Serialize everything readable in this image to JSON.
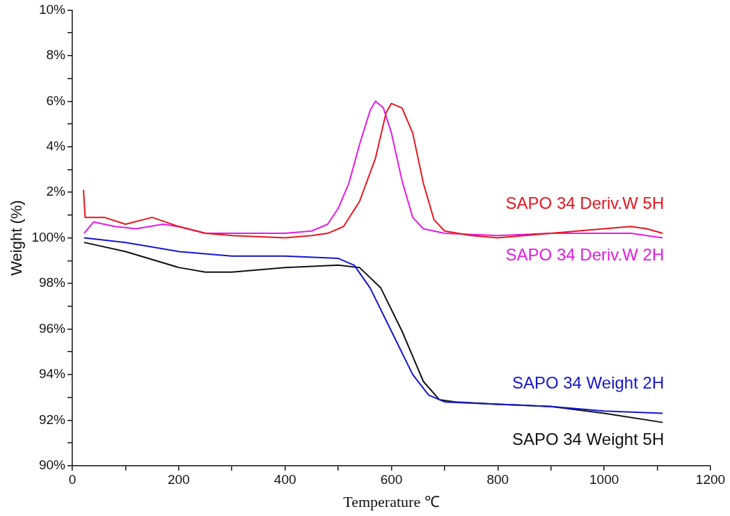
{
  "chart_data": {
    "type": "line",
    "xlabel": "Temperature ℃",
    "ylabel": "Weight (%)",
    "xlim": [
      0,
      1200
    ],
    "ylim": [
      90,
      110
    ],
    "y2lim": [
      -10,
      10
    ],
    "xticks": [
      0,
      {
        "value": 100,
        "label": null
      },
      200,
      {
        "value": 300,
        "label": null
      },
      400,
      {
        "value": 500,
        "label": null
      },
      600,
      {
        "value": 700,
        "label": null
      },
      800,
      {
        "value": 900,
        "label": null
      },
      1000,
      {
        "value": 1100,
        "label": null
      },
      1200
    ],
    "yticks": [
      {
        "value": 90,
        "label": "90%"
      },
      {
        "value": 91,
        "label": null
      },
      {
        "value": 92,
        "label": "92%"
      },
      {
        "value": 93,
        "label": null
      },
      {
        "value": 94,
        "label": "94%"
      },
      {
        "value": 95,
        "label": null
      },
      {
        "value": 96,
        "label": "96%"
      },
      {
        "value": 97,
        "label": null
      },
      {
        "value": 98,
        "label": "98%"
      },
      {
        "value": 99,
        "label": null
      },
      {
        "value": 100,
        "label": "100%"
      }
    ],
    "y2ticks": [
      {
        "value": 1,
        "label": null
      },
      {
        "value": 2,
        "label": "2%"
      },
      {
        "value": 3,
        "label": null
      },
      {
        "value": 4,
        "label": "4%"
      },
      {
        "value": 5,
        "label": null
      },
      {
        "value": 6,
        "label": "6%"
      },
      {
        "value": 7,
        "label": null
      },
      {
        "value": 8,
        "label": "8%"
      },
      {
        "value": 9,
        "label": null
      },
      {
        "value": 10,
        "label": "10%"
      }
    ],
    "grid": false,
    "legend": false,
    "marker": "none",
    "line_style": "solid",
    "series": [
      {
        "name": "SAPO 34 Deriv.W 5H",
        "color": "#e8141e",
        "axis": "y2",
        "x": [
          21,
          24,
          60,
          100,
          150,
          200,
          250,
          300,
          400,
          450,
          480,
          510,
          540,
          570,
          590,
          600,
          620,
          640,
          660,
          680,
          700,
          750,
          800,
          850,
          900,
          950,
          1000,
          1050,
          1080,
          1110
        ],
        "values": [
          2.1,
          0.9,
          0.9,
          0.6,
          0.9,
          0.5,
          0.2,
          0.1,
          0.0,
          0.1,
          0.2,
          0.5,
          1.6,
          3.5,
          5.5,
          5.9,
          5.7,
          4.6,
          2.4,
          0.8,
          0.3,
          0.1,
          0.0,
          0.1,
          0.2,
          0.3,
          0.4,
          0.5,
          0.4,
          0.2
        ]
      },
      {
        "name": "SAPO 34 Deriv.W 2H",
        "color": "#e619e6",
        "axis": "y2",
        "x": [
          22,
          40,
          80,
          120,
          170,
          200,
          250,
          300,
          400,
          450,
          480,
          500,
          520,
          540,
          560,
          570,
          585,
          600,
          620,
          640,
          660,
          700,
          800,
          900,
          1000,
          1050,
          1110
        ],
        "values": [
          0.2,
          0.7,
          0.5,
          0.4,
          0.6,
          0.5,
          0.2,
          0.2,
          0.2,
          0.3,
          0.6,
          1.3,
          2.4,
          4.1,
          5.6,
          6.0,
          5.7,
          4.6,
          2.5,
          0.9,
          0.4,
          0.2,
          0.1,
          0.2,
          0.2,
          0.2,
          0.0
        ]
      },
      {
        "name": "SAPO 34 Weight 2H",
        "color": "#1414d2",
        "x": [
          22,
          100,
          200,
          300,
          400,
          500,
          530,
          560,
          600,
          640,
          670,
          700,
          800,
          900,
          1000,
          1110
        ],
        "values": [
          100.0,
          99.8,
          99.4,
          99.2,
          99.2,
          99.1,
          98.8,
          97.8,
          95.9,
          94.0,
          93.1,
          92.8,
          92.7,
          92.6,
          92.4,
          92.3
        ]
      },
      {
        "name": "SAPO 34 Weight 5H",
        "color": "#111111",
        "x": [
          22,
          100,
          200,
          250,
          300,
          400,
          500,
          540,
          580,
          620,
          660,
          690,
          720,
          800,
          900,
          1000,
          1110
        ],
        "values": [
          99.8,
          99.4,
          98.7,
          98.5,
          98.5,
          98.7,
          98.8,
          98.7,
          97.8,
          95.9,
          93.7,
          92.9,
          92.8,
          92.7,
          92.6,
          92.3,
          91.9
        ]
      }
    ]
  }
}
